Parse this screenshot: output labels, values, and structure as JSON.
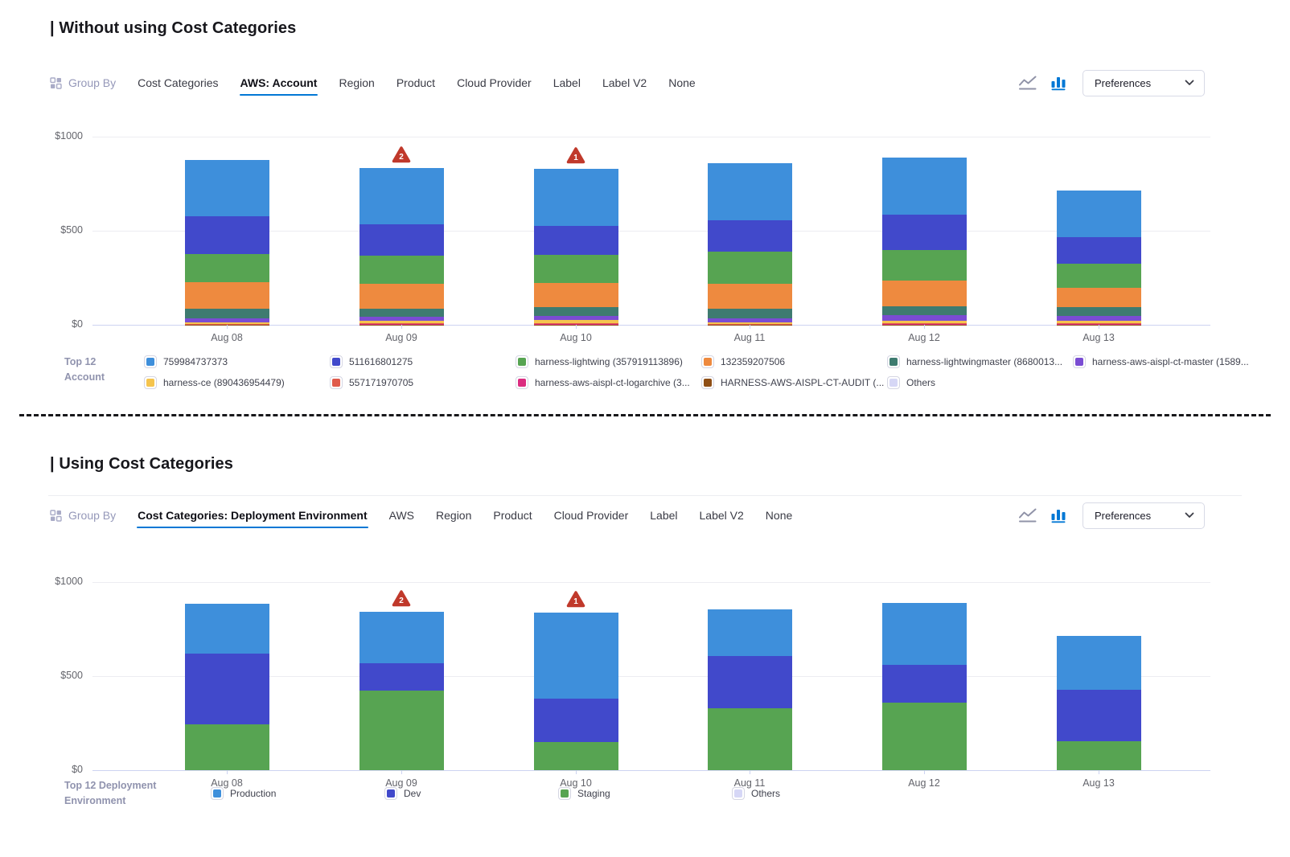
{
  "sections": [
    {
      "heading": "| Without using Cost Categories",
      "toolbar": {
        "group_by_label": "Group By",
        "tabs": [
          "Cost Categories",
          "AWS: Account",
          "Region",
          "Product",
          "Cloud Provider",
          "Label",
          "Label V2",
          "None"
        ],
        "active_tab": "AWS: Account",
        "view_toggles": [
          "line-chart",
          "bar-chart"
        ],
        "active_view": "bar-chart",
        "preferences_label": "Preferences"
      }
    },
    {
      "heading": "| Using Cost Categories",
      "toolbar": {
        "group_by_label": "Group By",
        "tabs": [
          "Cost Categories: Deployment Environment",
          "AWS",
          "Region",
          "Product",
          "Cloud Provider",
          "Label",
          "Label V2",
          "None"
        ],
        "active_tab": "Cost Categories: Deployment Environment",
        "view_toggles": [
          "line-chart",
          "bar-chart"
        ],
        "active_view": "bar-chart",
        "preferences_label": "Preferences"
      }
    }
  ],
  "colors": {
    "accent": "#0278D5",
    "anomaly": "#C0392B",
    "axis_line": "#CDD3F1",
    "gridline": "#EDEDF1"
  },
  "chart_data": [
    {
      "type": "bar",
      "stacked": true,
      "title": "Without using Cost Categories",
      "categories": [
        "Aug 08",
        "Aug 09",
        "Aug 10",
        "Aug 11",
        "Aug 12",
        "Aug 13"
      ],
      "ylim": [
        0,
        1000
      ],
      "yticks": [
        {
          "label": "$1000",
          "value": 1000
        },
        {
          "label": "$500",
          "value": 500
        },
        {
          "label": "$0",
          "value": 0
        }
      ],
      "grid": "horizontal",
      "legend_position": "bottom",
      "legend_title_lines": [
        "Top 12",
        "Account"
      ],
      "legend_columns": [
        [
          0,
          6
        ],
        [
          1,
          7
        ],
        [
          2,
          8
        ],
        [
          3,
          9
        ],
        [
          4,
          10
        ],
        [
          5
        ]
      ],
      "legend_col_width": 231,
      "series": [
        {
          "name": "759984737373",
          "color": "#3E8FDB",
          "values": [
            300,
            300,
            302,
            302,
            305,
            244
          ]
        },
        {
          "name": "511616801275",
          "color": "#4149CB",
          "values": [
            198,
            164,
            156,
            168,
            190,
            144
          ]
        },
        {
          "name": "harness-lightwing (357919113896)",
          "color": "#57A452",
          "values": [
            151,
            149,
            147,
            170,
            160,
            127
          ]
        },
        {
          "name": "132359207506",
          "color": "#EE8A3F",
          "values": [
            140,
            136,
            131,
            131,
            137,
            103
          ]
        },
        {
          "name": "harness-lightwingmaster (8680013...",
          "color": "#3E7B70",
          "values": [
            51,
            43,
            47,
            53,
            46,
            48
          ]
        },
        {
          "name": "harness-aws-aispl-ct-master (1589...",
          "color": "#7A4CD3",
          "values": [
            23,
            19,
            22,
            20,
            31,
            24
          ]
        },
        {
          "name": "harness-ce (890436954479)",
          "color": "#F5C44D",
          "values": [
            7,
            14,
            15,
            8,
            15,
            15
          ]
        },
        {
          "name": "557171970705",
          "color": "#E05A4B",
          "values": [
            3,
            5,
            6,
            3,
            4,
            4
          ]
        },
        {
          "name": "harness-aws-aispl-ct-logarchive (3...",
          "color": "#DB2C80",
          "values": [
            1,
            1,
            1,
            1,
            1,
            1
          ]
        },
        {
          "name": "HARNESS-AWS-AISPL-CT-AUDIT (...",
          "color": "#8F4F16",
          "values": [
            1,
            1,
            1,
            1,
            1,
            1
          ]
        },
        {
          "name": "Others",
          "color": "#D6D7F6",
          "values": [
            1,
            1,
            1,
            1,
            1,
            1
          ]
        }
      ],
      "stack_order": "reverse-of-series-list",
      "anomalies": [
        {
          "category": "Aug 09",
          "x_index": 1,
          "count": 2
        },
        {
          "category": "Aug 10",
          "x_index": 2,
          "count": 1
        }
      ]
    },
    {
      "type": "bar",
      "stacked": true,
      "title": "Using Cost Categories",
      "categories": [
        "Aug 08",
        "Aug 09",
        "Aug 10",
        "Aug 11",
        "Aug 12",
        "Aug 13"
      ],
      "ylim": [
        0,
        1000
      ],
      "yticks": [
        {
          "label": "$1000",
          "value": 1000
        },
        {
          "label": "$500",
          "value": 500
        },
        {
          "label": "$0",
          "value": 0
        }
      ],
      "grid": "horizontal",
      "legend_position": "bottom",
      "legend_title_lines": [
        "Top 12 Deployment",
        "Environment"
      ],
      "legend_columns": [
        [
          0
        ],
        [
          1
        ],
        [
          2
        ],
        [
          3
        ]
      ],
      "legend_col_width": 216,
      "series": [
        {
          "name": "Production",
          "color": "#3E8FDB",
          "values": [
            265,
            274,
            457,
            249,
            326,
            287
          ]
        },
        {
          "name": "Dev",
          "color": "#4149CB",
          "values": [
            376,
            145,
            229,
            275,
            203,
            270
          ]
        },
        {
          "name": "Staging",
          "color": "#57A452",
          "values": [
            242,
            421,
            149,
            330,
            357,
            155
          ]
        },
        {
          "name": "Others",
          "color": "#D6D7F6",
          "values": [
            1,
            1,
            1,
            1,
            1,
            1
          ]
        }
      ],
      "stack_order": "reverse-of-series-list",
      "anomalies": [
        {
          "category": "Aug 09",
          "x_index": 1,
          "count": 2
        },
        {
          "category": "Aug 10",
          "x_index": 2,
          "count": 1
        }
      ]
    }
  ]
}
